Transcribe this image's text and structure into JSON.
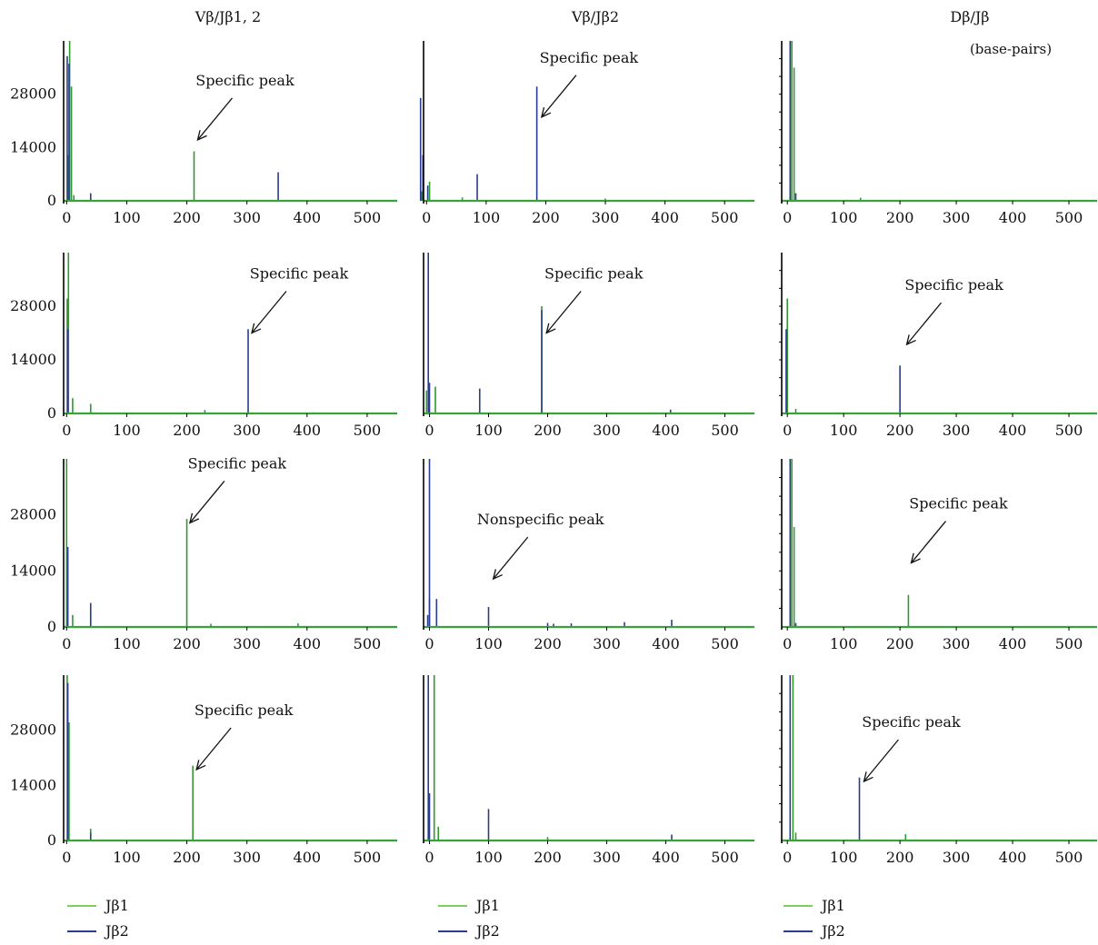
{
  "colors": {
    "jb1": "#2e9a2e",
    "jb2": "#2a3c8e",
    "jb1_legend": "#7ccf5a",
    "jb2_legend": "#2a3c8e",
    "baseline": "#3aa23a",
    "axis": "#000000"
  },
  "units_label": "(base-pairs)",
  "columns": [
    {
      "title": "Vβ/Jβ1, 2"
    },
    {
      "title": "Vβ/Jβ2"
    },
    {
      "title": "Dβ/Jβ"
    }
  ],
  "legend": [
    {
      "label": "Jβ1",
      "series": "jb1"
    },
    {
      "label": "Jβ2",
      "series": "jb2"
    }
  ],
  "chart_data": [
    {
      "type": "line",
      "panel": "row1-col1",
      "xlim": [
        -5,
        550
      ],
      "ylim": [
        0,
        42000
      ],
      "x_ticks": [
        0,
        100,
        200,
        300,
        400,
        500
      ],
      "y_ticks": [
        0,
        14000,
        28000
      ],
      "series": [
        {
          "name": "Jβ1",
          "color_key": "jb1",
          "peaks": [
            [
              5,
              46000
            ],
            [
              8,
              30000
            ],
            [
              2,
              12000
            ],
            [
              12,
              1500
            ],
            [
              40,
              900
            ],
            [
              212,
              13000
            ]
          ]
        },
        {
          "name": "Jβ2",
          "color_key": "jb2",
          "peaks": [
            [
              1,
              38000
            ],
            [
              4,
              36000
            ],
            [
              40,
              2000
            ],
            [
              352,
              7500
            ]
          ]
        }
      ],
      "annotation": {
        "text": "Specific peak",
        "x": 218,
        "y": 16000
      }
    },
    {
      "type": "line",
      "panel": "row1-col2",
      "xlim": [
        -5,
        550
      ],
      "ylim": [
        0,
        42000
      ],
      "x_ticks": [
        0,
        100,
        200,
        300,
        400,
        500
      ],
      "y_ticks": [
        0,
        14000,
        28000
      ],
      "series": [
        {
          "name": "Jβ1",
          "color_key": "jb1",
          "peaks": [
            [
              -8,
              2500
            ],
            [
              5,
              5000
            ],
            [
              60,
              900
            ],
            [
              300,
              600
            ]
          ]
        },
        {
          "name": "Jβ2",
          "color_key": "jb2",
          "peaks": [
            [
              -10,
              27000
            ],
            [
              -6,
              12000
            ],
            [
              2,
              4000
            ],
            [
              85,
              7000
            ],
            [
              185,
              30000
            ]
          ]
        }
      ],
      "annotation": {
        "text": "Specific peak",
        "x": 193,
        "y": 22000
      }
    },
    {
      "type": "line",
      "panel": "row1-col3",
      "xlim": [
        -10,
        550
      ],
      "ylim": [
        0,
        42000
      ],
      "x_ticks": [
        0,
        100,
        200,
        300,
        400,
        500
      ],
      "y_ticks": [
        0,
        14000,
        28000
      ],
      "series": [
        {
          "name": "Jβ1",
          "color_key": "jb1",
          "peaks": [
            [
              8,
              46000
            ],
            [
              12,
              35000
            ],
            [
              130,
              800
            ]
          ]
        },
        {
          "name": "Jβ2",
          "color_key": "jb2",
          "peaks": [
            [
              5,
              44000
            ],
            [
              15,
              2000
            ]
          ]
        }
      ],
      "annotation": null
    },
    {
      "type": "line",
      "panel": "row2-col1",
      "xlim": [
        -5,
        550
      ],
      "ylim": [
        0,
        42000
      ],
      "x_ticks": [
        0,
        100,
        200,
        300,
        400,
        500
      ],
      "y_ticks": [
        0,
        14000,
        28000
      ],
      "series": [
        {
          "name": "Jβ1",
          "color_key": "jb1",
          "peaks": [
            [
              3,
              46000
            ],
            [
              1,
              30000
            ],
            [
              10,
              4000
            ],
            [
              40,
              2500
            ],
            [
              230,
              900
            ]
          ]
        },
        {
          "name": "Jβ2",
          "color_key": "jb2",
          "peaks": [
            [
              2,
              22000
            ],
            [
              302,
              22000
            ]
          ]
        }
      ],
      "annotation": {
        "text": "Specific peak",
        "x": 308,
        "y": 21000
      }
    },
    {
      "type": "line",
      "panel": "row2-col2",
      "xlim": [
        -10,
        550
      ],
      "ylim": [
        0,
        42000
      ],
      "x_ticks": [
        0,
        100,
        200,
        300,
        400,
        500
      ],
      "y_ticks": [
        0,
        14000,
        28000
      ],
      "series": [
        {
          "name": "Jβ1",
          "color_key": "jb1",
          "peaks": [
            [
              -5,
              6000
            ],
            [
              10,
              7000
            ],
            [
              190,
              28000
            ]
          ]
        },
        {
          "name": "Jβ2",
          "color_key": "jb2",
          "peaks": [
            [
              -2,
              46000
            ],
            [
              0,
              8000
            ],
            [
              85,
              6500
            ],
            [
              190,
              27000
            ],
            [
              408,
              1000
            ]
          ]
        }
      ],
      "annotation": {
        "text": "Specific peak",
        "x": 198,
        "y": 21000
      }
    },
    {
      "type": "line",
      "panel": "row2-col3",
      "xlim": [
        -10,
        550
      ],
      "ylim": [
        0,
        42000
      ],
      "x_ticks": [
        0,
        100,
        200,
        300,
        400,
        500
      ],
      "y_ticks": [
        0,
        14000,
        28000
      ],
      "series": [
        {
          "name": "Jβ1",
          "color_key": "jb1",
          "peaks": [
            [
              0,
              30000
            ],
            [
              15,
              1200
            ]
          ]
        },
        {
          "name": "Jβ2",
          "color_key": "jb2",
          "peaks": [
            [
              -2,
              22000
            ],
            [
              200,
              12500
            ]
          ]
        }
      ],
      "annotation": {
        "text": "Specific peak",
        "x": 212,
        "y": 18000
      }
    },
    {
      "type": "line",
      "panel": "row3-col1",
      "xlim": [
        -5,
        550
      ],
      "ylim": [
        0,
        42000
      ],
      "x_ticks": [
        0,
        100,
        200,
        300,
        400,
        500
      ],
      "y_ticks": [
        0,
        14000,
        28000
      ],
      "series": [
        {
          "name": "Jβ1",
          "color_key": "jb1",
          "peaks": [
            [
              0,
              46000
            ],
            [
              10,
              3000
            ],
            [
              40,
              4000
            ],
            [
              200,
              27000
            ],
            [
              240,
              800
            ],
            [
              385,
              900
            ]
          ]
        },
        {
          "name": "Jβ2",
          "color_key": "jb2",
          "peaks": [
            [
              2,
              20000
            ],
            [
              40,
              6000
            ]
          ]
        }
      ],
      "annotation": {
        "text": "Specific peak",
        "x": 205,
        "y": 26000
      }
    },
    {
      "type": "line",
      "panel": "row3-col2",
      "xlim": [
        -10,
        550
      ],
      "ylim": [
        0,
        42000
      ],
      "x_ticks": [
        0,
        100,
        200,
        300,
        400,
        500
      ],
      "y_ticks": [
        0,
        14000,
        28000
      ],
      "series": [
        {
          "name": "Jβ1",
          "color_key": "jb1",
          "peaks": [
            [
              0,
              7000
            ]
          ]
        },
        {
          "name": "Jβ2",
          "color_key": "jb2",
          "peaks": [
            [
              -3,
              3000
            ],
            [
              0,
              46000
            ],
            [
              12,
              7000
            ],
            [
              100,
              5000
            ],
            [
              200,
              1000
            ],
            [
              210,
              800
            ],
            [
              240,
              900
            ],
            [
              330,
              1200
            ],
            [
              410,
              1800
            ]
          ]
        }
      ],
      "annotation": {
        "text": "Nonspecific peak",
        "x": 108,
        "y": 12000
      }
    },
    {
      "type": "line",
      "panel": "row3-col3",
      "xlim": [
        -10,
        550
      ],
      "ylim": [
        0,
        42000
      ],
      "x_ticks": [
        0,
        100,
        200,
        300,
        400,
        500
      ],
      "y_ticks": [
        0,
        14000,
        28000
      ],
      "series": [
        {
          "name": "Jβ1",
          "color_key": "jb1",
          "peaks": [
            [
              8,
              46000
            ],
            [
              12,
              25000
            ],
            [
              215,
              8000
            ]
          ]
        },
        {
          "name": "Jβ2",
          "color_key": "jb2",
          "peaks": [
            [
              5,
              44000
            ],
            [
              15,
              1000
            ]
          ]
        }
      ],
      "annotation": {
        "text": "Specific peak",
        "x": 220,
        "y": 16000
      }
    },
    {
      "type": "line",
      "panel": "row4-col1",
      "xlim": [
        -5,
        550
      ],
      "ylim": [
        0,
        42000
      ],
      "x_ticks": [
        0,
        100,
        200,
        300,
        400,
        500
      ],
      "y_ticks": [
        0,
        14000,
        28000
      ],
      "series": [
        {
          "name": "Jβ1",
          "color_key": "jb1",
          "peaks": [
            [
              1,
              46000
            ],
            [
              4,
              30000
            ],
            [
              40,
              3000
            ],
            [
              210,
              19000
            ]
          ]
        },
        {
          "name": "Jβ2",
          "color_key": "jb2",
          "peaks": [
            [
              2,
              40000
            ],
            [
              40,
              2000
            ]
          ]
        }
      ],
      "annotation": {
        "text": "Specific peak",
        "x": 216,
        "y": 18000
      }
    },
    {
      "type": "line",
      "panel": "row4-col2",
      "xlim": [
        -10,
        550
      ],
      "ylim": [
        0,
        42000
      ],
      "x_ticks": [
        0,
        100,
        200,
        300,
        400,
        500
      ],
      "y_ticks": [
        0,
        14000,
        28000
      ],
      "series": [
        {
          "name": "Jβ1",
          "color_key": "jb1",
          "peaks": [
            [
              8,
              46000
            ],
            [
              15,
              3500
            ],
            [
              200,
              900
            ]
          ]
        },
        {
          "name": "Jβ2",
          "color_key": "jb2",
          "peaks": [
            [
              -2,
              46000
            ],
            [
              0,
              12000
            ],
            [
              100,
              8000
            ],
            [
              410,
              1500
            ]
          ]
        }
      ],
      "annotation": null
    },
    {
      "type": "line",
      "panel": "row4-col3",
      "xlim": [
        -10,
        550
      ],
      "ylim": [
        0,
        42000
      ],
      "x_ticks": [
        0,
        100,
        200,
        300,
        400,
        500
      ],
      "y_ticks": [
        0,
        14000,
        28000
      ],
      "series": [
        {
          "name": "Jβ1",
          "color_key": "jb1",
          "peaks": [
            [
              10,
              46000
            ],
            [
              15,
              2000
            ],
            [
              210,
              1600
            ]
          ]
        },
        {
          "name": "Jβ2",
          "color_key": "jb2",
          "peaks": [
            [
              5,
              44000
            ],
            [
              128,
              16000
            ]
          ]
        }
      ],
      "annotation": {
        "text": "Specific peak",
        "x": 136,
        "y": 15000
      }
    }
  ]
}
